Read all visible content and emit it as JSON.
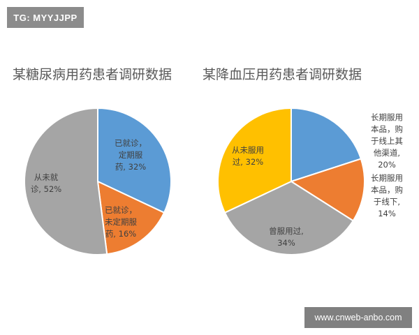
{
  "badge": "TG: MYYJJPP",
  "watermark": "www.cnweb-anbo.com",
  "colors": {
    "blue": "#5b9bd5",
    "orange": "#ed7d31",
    "gray": "#a5a5a5",
    "yellow": "#ffc000",
    "border": "#ffffff"
  },
  "chart_data": [
    {
      "type": "pie",
      "title": "某糖尿病用药患者调研数据",
      "slices": [
        {
          "label": "已就诊，\n定期服\n药, 32%",
          "value": 32,
          "color": "#5b9bd5"
        },
        {
          "label": "已就诊，\n未定期服\n药, 16%",
          "value": 16,
          "color": "#ed7d31"
        },
        {
          "label": "从未就\n诊, 52%",
          "value": 52,
          "color": "#a5a5a5"
        }
      ]
    },
    {
      "type": "pie",
      "title": "某降血压用药患者调研数据",
      "slices": [
        {
          "label": "长期服用\n本品，购\n于线上其\n他渠道,\n20%",
          "value": 20,
          "color": "#5b9bd5"
        },
        {
          "label": "长期服用\n本品，购\n于线下,\n14%",
          "value": 14,
          "color": "#ed7d31"
        },
        {
          "label": "曾服用过,\n34%",
          "value": 34,
          "color": "#a5a5a5"
        },
        {
          "label": "从未服用\n过, 32%",
          "value": 32,
          "color": "#ffc000"
        }
      ]
    }
  ]
}
